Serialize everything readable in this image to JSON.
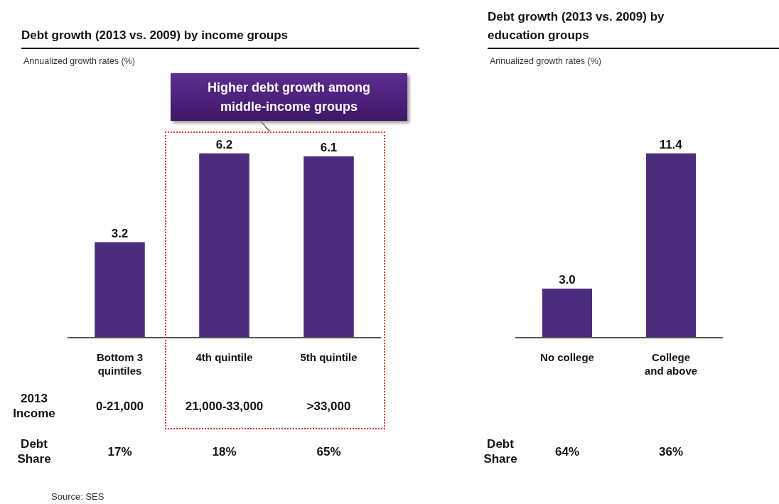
{
  "chart_data": [
    {
      "type": "bar",
      "title": "Debt growth (2013 vs. 2009) by income groups",
      "subtitle": "Annualized growth rates (%)",
      "categories": [
        "Bottom 3 quintiles",
        "4th quintile",
        "5th quintile"
      ],
      "values": [
        3.2,
        6.2,
        6.1
      ],
      "color": "#4b2c7f",
      "data_labels": true,
      "annotations": [
        "Higher debt growth among middle-income groups",
        "2013 Income",
        "0-21,000",
        "21,000-33,000",
        ">33,000",
        "Debt Share",
        "17%",
        "18%",
        "65%",
        "Source: SES"
      ]
    },
    {
      "type": "bar",
      "title": "Debt growth (2013 vs. 2009) by education groups",
      "subtitle": "Annualized growth rates (%)",
      "categories": [
        "No college",
        "College and above"
      ],
      "values": [
        3.0,
        11.4
      ],
      "value_labels": [
        "3.0",
        "11.4"
      ],
      "color": "#4b2c7f",
      "annotations": [
        "Debt Share",
        "64%",
        "36%"
      ]
    }
  ]
}
